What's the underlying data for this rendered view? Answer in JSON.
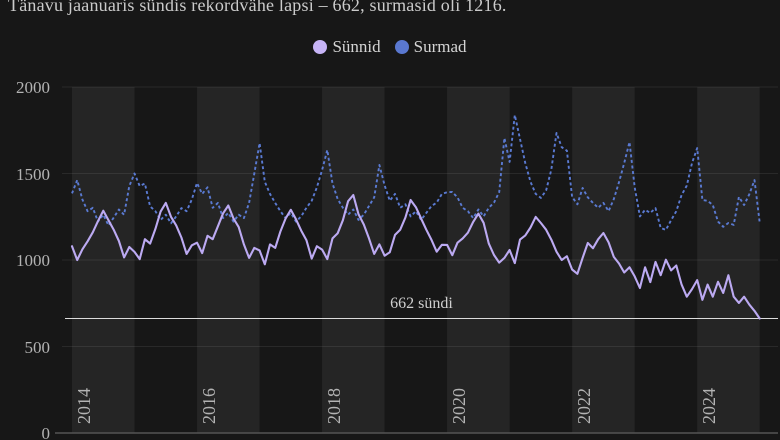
{
  "title": "Tänavu jaanuaris sündis rekordvähe lapsi – 662, surmasid oli 1216.",
  "legend": [
    {
      "label": "Sünnid",
      "color": "#c7b4f6"
    },
    {
      "label": "Surmad",
      "color": "#5a78d0"
    }
  ],
  "colors": {
    "background": "#171717",
    "year_band": "#252525",
    "gridline": "rgba(255,255,255,0.08)",
    "axis_line": "#555555",
    "births_line": "#bcaaf2",
    "deaths_line": "#5a7ad2",
    "annotation_line": "#dcdcdc",
    "tick_text": "#b3b3b3"
  },
  "chart_data": {
    "type": "line",
    "title": "Tänavu jaanuaris sündis rekordvähe lapsi – 662, surmasid oli 1216.",
    "x_range": {
      "start": "2014-01",
      "end": "2025-01",
      "interval": "monthly"
    },
    "x_ticks": [
      "2014",
      "2016",
      "2018",
      "2020",
      "2022",
      "2024"
    ],
    "y_ticks": [
      "0",
      "500",
      "1000",
      "1500",
      "2000"
    ],
    "ylim": [
      0,
      2000
    ],
    "grid": "horizontal",
    "legend_position": "top-center",
    "annotation_line": {
      "y": 662,
      "label": "662 sündi"
    },
    "series": [
      {
        "name": "Sünnid",
        "style": "solid",
        "values": [
          1080,
          1000,
          1062,
          1108,
          1160,
          1225,
          1285,
          1230,
          1175,
          1110,
          1015,
          1075,
          1047,
          1005,
          1120,
          1095,
          1180,
          1280,
          1330,
          1250,
          1200,
          1130,
          1035,
          1085,
          1100,
          1040,
          1140,
          1120,
          1195,
          1270,
          1315,
          1240,
          1190,
          1090,
          1012,
          1070,
          1055,
          975,
          1090,
          1070,
          1165,
          1240,
          1290,
          1235,
          1170,
          1115,
          1008,
          1080,
          1060,
          1005,
          1125,
          1155,
          1230,
          1340,
          1376,
          1265,
          1205,
          1125,
          1035,
          1090,
          1025,
          1045,
          1145,
          1175,
          1245,
          1347,
          1305,
          1240,
          1175,
          1116,
          1048,
          1088,
          1087,
          1028,
          1100,
          1125,
          1158,
          1220,
          1268,
          1215,
          1095,
          1029,
          985,
          1012,
          1058,
          982,
          1118,
          1142,
          1188,
          1249,
          1214,
          1175,
          1118,
          1048,
          1000,
          1022,
          945,
          920,
          1012,
          1098,
          1068,
          1120,
          1156,
          1102,
          1018,
          980,
          928,
          958,
          905,
          838,
          958,
          872,
          989,
          912,
          1002,
          940,
          968,
          858,
          788,
          832,
          884,
          770,
          858,
          788,
          874,
          810,
          912,
          788,
          752,
          788,
          742,
          706,
          662
        ]
      },
      {
        "name": "Surmad",
        "style": "dashed",
        "values": [
          1385,
          1462,
          1350,
          1282,
          1302,
          1222,
          1262,
          1200,
          1245,
          1292,
          1262,
          1428,
          1500,
          1428,
          1442,
          1310,
          1282,
          1232,
          1262,
          1212,
          1252,
          1300,
          1282,
          1350,
          1445,
          1382,
          1420,
          1302,
          1330,
          1242,
          1272,
          1222,
          1262,
          1242,
          1330,
          1500,
          1676,
          1452,
          1382,
          1330,
          1282,
          1242,
          1272,
          1222,
          1252,
          1302,
          1342,
          1420,
          1520,
          1636,
          1442,
          1352,
          1302,
          1262,
          1292,
          1232,
          1262,
          1312,
          1362,
          1549,
          1432,
          1342,
          1382,
          1302,
          1322,
          1252,
          1282,
          1232,
          1272,
          1312,
          1332,
          1382,
          1392,
          1393,
          1362,
          1302,
          1282,
          1242,
          1292,
          1252,
          1302,
          1332,
          1392,
          1705,
          1567,
          1838,
          1700,
          1560,
          1452,
          1382,
          1359,
          1402,
          1522,
          1734,
          1652,
          1632,
          1365,
          1322,
          1416,
          1362,
          1330,
          1302,
          1330,
          1282,
          1352,
          1450,
          1560,
          1682,
          1420,
          1252,
          1290,
          1272,
          1300,
          1185,
          1174,
          1230,
          1282,
          1376,
          1430,
          1560,
          1647,
          1347,
          1342,
          1318,
          1222,
          1192,
          1214,
          1203,
          1365,
          1318,
          1380,
          1462,
          1216
        ]
      }
    ]
  }
}
